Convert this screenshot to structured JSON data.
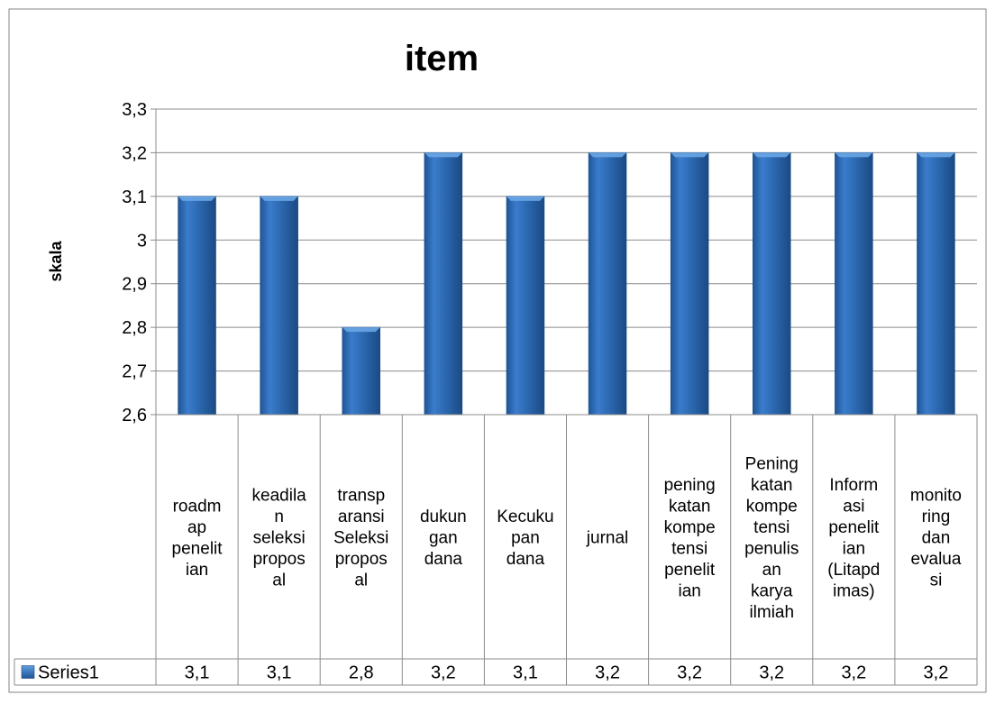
{
  "chart_data": {
    "type": "bar",
    "title": "item",
    "xlabel": "",
    "ylabel": "skala",
    "ylim": [
      2.6,
      3.3
    ],
    "yticks": [
      "3,3",
      "3,2",
      "3,1",
      "3",
      "2,9",
      "2,8",
      "2,7",
      "2,6"
    ],
    "ytick_values": [
      3.3,
      3.2,
      3.1,
      3.0,
      2.9,
      2.8,
      2.7,
      2.6
    ],
    "grid": true,
    "legend_in_data_table": true,
    "categories": [
      "roadmap penelitian",
      "keadilan seleksi proposal",
      "transparansi Seleksi proposal",
      "dukungan dana",
      "Kecukupan dana",
      "jurnal",
      "peningkatan kompetensi penelitian",
      "Peningkatan kompetensi penulisan karya ilmiah",
      "Informasi penelitian (Litapdimas)",
      "monitoring dan evaluasi"
    ],
    "category_label_lines": [
      [
        "roadm",
        "ap",
        "penelit",
        "ian"
      ],
      [
        "keadila",
        "n",
        "seleksi",
        "propos",
        "al"
      ],
      [
        "transp",
        "aransi",
        "Seleksi",
        "propos",
        "al"
      ],
      [
        "dukun",
        "gan",
        "dana"
      ],
      [
        "Kecuku",
        "pan",
        "dana"
      ],
      [
        "jurnal"
      ],
      [
        "pening",
        "katan",
        "kompe",
        "tensi",
        "penelit",
        "ian"
      ],
      [
        "Pening",
        "katan",
        "kompe",
        "tensi",
        "penulis",
        "an",
        "karya",
        "ilmiah"
      ],
      [
        "Inform",
        "asi",
        "penelit",
        "ian",
        "(Litapd",
        "imas)"
      ],
      [
        "monito",
        "ring",
        "dan",
        "evalua",
        "si"
      ]
    ],
    "series": [
      {
        "name": "Series1",
        "values": [
          3.1,
          3.1,
          2.8,
          3.2,
          3.1,
          3.2,
          3.2,
          3.2,
          3.2,
          3.2
        ],
        "value_labels": [
          "3,1",
          "3,1",
          "2,8",
          "3,2",
          "3,1",
          "3,2",
          "3,2",
          "3,2",
          "3,2",
          "3,2"
        ]
      }
    ],
    "colors": {
      "bar_light": "#5b9bd5",
      "bar_mid": "#2e6db4",
      "bar_dark": "#1c4c86",
      "grid": "#8c8c8c",
      "border": "#868686"
    }
  }
}
